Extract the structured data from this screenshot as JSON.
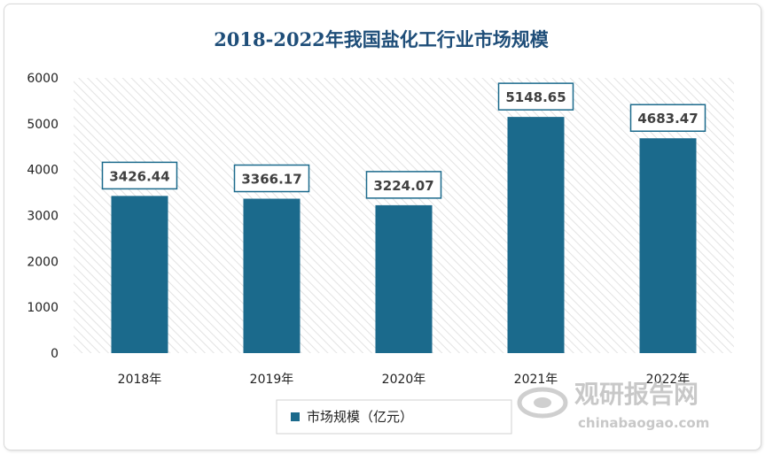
{
  "chart_data": {
    "type": "bar",
    "title": "2018-2022年我国盐化工行业市场规模",
    "categories": [
      "2018年",
      "2019年",
      "2020年",
      "2021年",
      "2022年"
    ],
    "series": [
      {
        "name": "市场规模（亿元）",
        "values": [
          3426.44,
          3366.17,
          3224.07,
          5148.65,
          4683.47
        ]
      }
    ],
    "data_labels": [
      "3426.44",
      "3366.17",
      "3224.07",
      "5148.65",
      "4683.47"
    ],
    "y_ticks": [
      "0",
      "1000",
      "2000",
      "3000",
      "4000",
      "5000",
      "6000"
    ],
    "ylim": [
      0,
      6000
    ],
    "grid": false,
    "legend_position": "bottom",
    "colors": {
      "bar": "#1b6a8c",
      "title": "#1f4e79",
      "label_border": "#1b6a8c"
    }
  },
  "watermark": {
    "cn": "观研报告网",
    "en": "chinabaogao.com"
  }
}
